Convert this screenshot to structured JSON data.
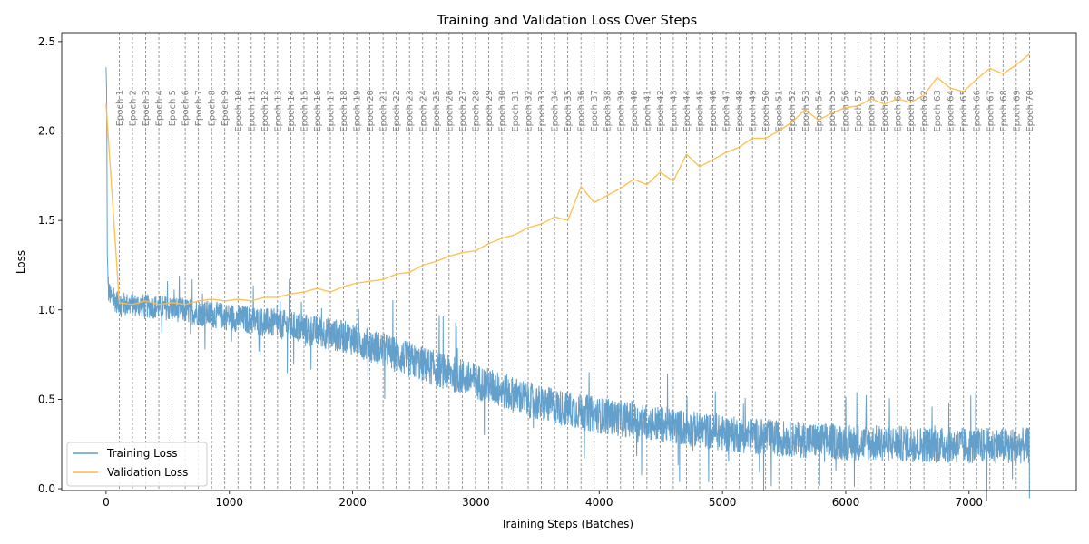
{
  "chart_data": {
    "type": "line",
    "title": "Training and Validation Loss Over Steps",
    "xlabel": "Training Steps (Batches)",
    "ylabel": "Loss",
    "xlim": [
      -360,
      7870
    ],
    "ylim": [
      -0.01,
      2.55
    ],
    "xticks": [
      0,
      1000,
      2000,
      3000,
      4000,
      5000,
      6000,
      7000
    ],
    "yticks": [
      0.0,
      0.5,
      1.0,
      1.5,
      2.0,
      2.5
    ],
    "grid": false,
    "legend_position": "lower-left",
    "colors": {
      "training": "#5b9bc8",
      "validation": "#ffbb44",
      "epoch_line": "#808080"
    },
    "epochs": {
      "label_prefix": "Epoch",
      "steps_per_epoch": 107,
      "count": 70
    },
    "series": [
      {
        "name": "Training Loss",
        "kind": "noisy",
        "x": [
          0,
          5,
          10,
          20,
          50,
          100,
          200,
          500,
          1000,
          1500,
          2000,
          2500,
          3000,
          3500,
          4000,
          4500,
          5000,
          5500,
          6000,
          6500,
          7000,
          7490
        ],
        "y": [
          2.35,
          2.2,
          1.3,
          1.1,
          1.06,
          1.04,
          1.03,
          1.01,
          0.96,
          0.91,
          0.84,
          0.71,
          0.6,
          0.48,
          0.41,
          0.36,
          0.31,
          0.28,
          0.26,
          0.25,
          0.24,
          0.24
        ]
      },
      {
        "name": "Validation Loss",
        "x": [
          0,
          107,
          214,
          321,
          428,
          535,
          642,
          749,
          856,
          963,
          1070,
          1177,
          1284,
          1391,
          1498,
          1605,
          1712,
          1819,
          1926,
          2033,
          2140,
          2247,
          2354,
          2461,
          2568,
          2675,
          2782,
          2889,
          2996,
          3103,
          3210,
          3317,
          3424,
          3531,
          3638,
          3745,
          3852,
          3959,
          4066,
          4173,
          4280,
          4387,
          4494,
          4601,
          4708,
          4815,
          4922,
          5029,
          5136,
          5243,
          5350,
          5457,
          5564,
          5671,
          5778,
          5885,
          5992,
          6099,
          6206,
          6313,
          6420,
          6527,
          6634,
          6741,
          6848,
          6955,
          7062,
          7169,
          7276,
          7383,
          7490
        ],
        "y": [
          2.15,
          1.04,
          1.03,
          1.05,
          1.03,
          1.04,
          1.03,
          1.05,
          1.06,
          1.05,
          1.06,
          1.05,
          1.07,
          1.07,
          1.09,
          1.1,
          1.12,
          1.1,
          1.13,
          1.15,
          1.16,
          1.17,
          1.2,
          1.21,
          1.25,
          1.27,
          1.3,
          1.32,
          1.33,
          1.37,
          1.4,
          1.42,
          1.46,
          1.48,
          1.52,
          1.5,
          1.69,
          1.6,
          1.64,
          1.68,
          1.73,
          1.7,
          1.77,
          1.72,
          1.87,
          1.8,
          1.84,
          1.88,
          1.91,
          1.96,
          1.96,
          2.0,
          2.05,
          2.12,
          2.06,
          2.1,
          2.13,
          2.14,
          2.18,
          2.15,
          2.18,
          2.16,
          2.2,
          2.3,
          2.24,
          2.22,
          2.29,
          2.35,
          2.32,
          2.37,
          2.43
        ]
      }
    ]
  }
}
